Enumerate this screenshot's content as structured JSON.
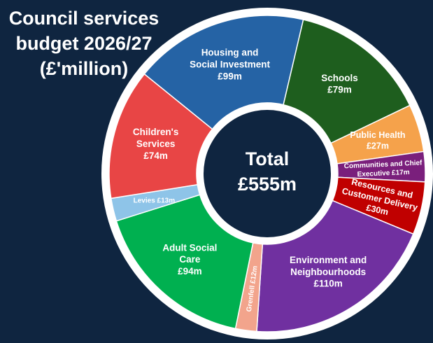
{
  "chart_data": {
    "type": "pie",
    "title_lines": [
      "Council services",
      "budget 2026/27",
      "(£'million)"
    ],
    "center_lines": [
      "Total",
      "£555m"
    ],
    "total": 555,
    "unit": "£m",
    "slices": [
      {
        "lines": [
          "Housing and",
          "Social Investment",
          "£99m"
        ],
        "value": 99,
        "color": "#2563a5",
        "text_color": "#ffffff",
        "rotate": false
      },
      {
        "lines": [
          "Schools",
          "£79m"
        ],
        "value": 79,
        "color": "#1e5e1e",
        "text_color": "#ffffff",
        "rotate": false
      },
      {
        "lines": [
          "Public Health",
          "£27m"
        ],
        "value": 27,
        "color": "#f5a24b",
        "text_color": "#ffffff",
        "rotate": false
      },
      {
        "lines": [
          "Communities and Chief",
          "Executive £17m"
        ],
        "value": 17,
        "color": "#7a1f7c",
        "text_color": "#ffffff",
        "rotate": true
      },
      {
        "lines": [
          "Resources and",
          "Customer Delivery",
          "£30m"
        ],
        "value": 30,
        "color": "#c00000",
        "text_color": "#ffffff",
        "rotate": true
      },
      {
        "lines": [
          "Environment and",
          "Neighbourhoods",
          "£110m"
        ],
        "value": 110,
        "color": "#7030a0",
        "text_color": "#ffffff",
        "rotate": false
      },
      {
        "lines": [
          "Grenfell £12m"
        ],
        "value": 12,
        "color": "#f2a48c",
        "text_color": "#ffffff",
        "rotate": true
      },
      {
        "lines": [
          "Adult Social",
          "Care",
          "£94m"
        ],
        "value": 94,
        "color": "#00b050",
        "text_color": "#ffffff",
        "rotate": false
      },
      {
        "lines": [
          "Levies £13m"
        ],
        "value": 13,
        "color": "#8ec4e8",
        "text_color": "#ffffff",
        "rotate": false
      },
      {
        "lines": [
          "Children's",
          "Services",
          "£74m"
        ],
        "value": 74,
        "color": "#e84545",
        "text_color": "#ffffff",
        "rotate": false
      }
    ]
  }
}
